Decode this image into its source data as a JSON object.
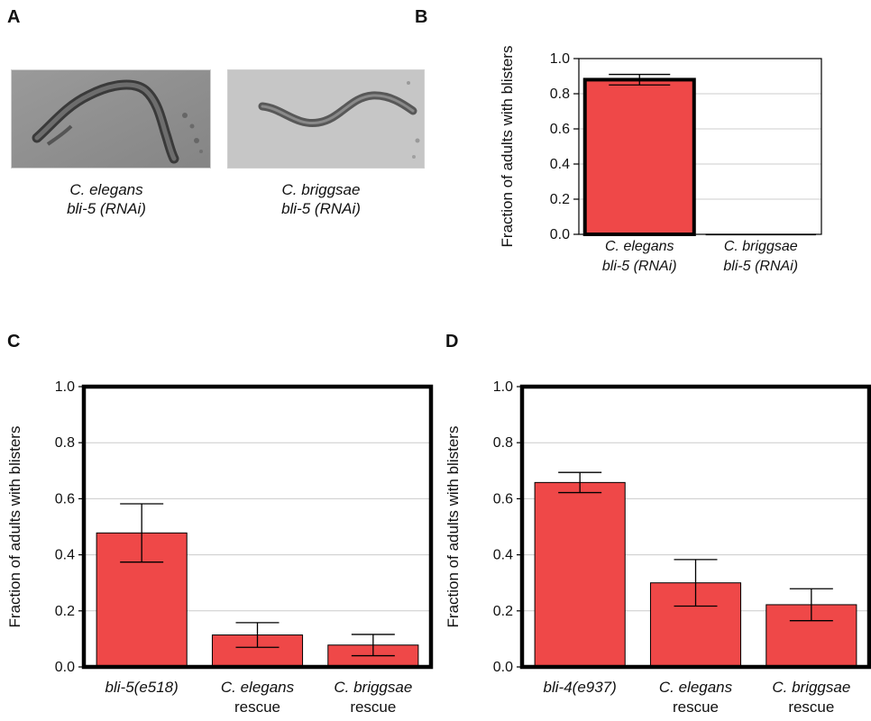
{
  "panels": {
    "A": "A",
    "B": "B",
    "C": "C",
    "D": "D"
  },
  "panel_a": {
    "left_caption": [
      "C. elegans",
      "bli-5 (RNAi)"
    ],
    "right_caption": [
      "C. briggsae",
      "bli-5 (RNAi)"
    ]
  },
  "colors": {
    "bar": "#ef4848",
    "axis": "#000000",
    "grid": "#cccccc",
    "worm_bg_left": "#8e8e8e",
    "worm_bg_right": "#c4c4c4"
  },
  "chart_data": [
    {
      "panel": "B",
      "type": "bar",
      "ylabel": "Fraction of adults with blisters",
      "ylim": [
        0,
        1.0
      ],
      "yticks": [
        "0.0",
        "0.2",
        "0.4",
        "0.6",
        "0.8",
        "1.0"
      ],
      "grid": true,
      "categories": [
        {
          "line1": "C. elegans",
          "line2": "bli-5 (RNAi)",
          "italic2": true
        },
        {
          "line1": "C. briggsae",
          "line2": "bli-5 (RNAi)",
          "italic2": true
        }
      ],
      "values": [
        0.88,
        0.0
      ],
      "errors": [
        0.03,
        0.0
      ]
    },
    {
      "panel": "C",
      "type": "bar",
      "ylabel": "Fraction of adults with blisters",
      "ylim": [
        0,
        1.0
      ],
      "yticks": [
        "0.0",
        "0.2",
        "0.4",
        "0.6",
        "0.8",
        "1.0"
      ],
      "grid": true,
      "categories": [
        {
          "line1": "bli-5(e518)",
          "line2": "",
          "italic2": false
        },
        {
          "line1": "C. elegans",
          "line2": "rescue",
          "italic2": false
        },
        {
          "line1": "C. briggsae",
          "line2": "rescue",
          "italic2": false
        }
      ],
      "values": [
        0.478,
        0.114,
        0.078
      ],
      "errors": [
        0.104,
        0.044,
        0.038
      ]
    },
    {
      "panel": "D",
      "type": "bar",
      "ylabel": "Fraction of adults with blisters",
      "ylim": [
        0,
        1.0
      ],
      "yticks": [
        "0.0",
        "0.2",
        "0.4",
        "0.6",
        "0.8",
        "1.0"
      ],
      "grid": true,
      "categories": [
        {
          "line1": "bli-4(e937)",
          "line2": "",
          "italic2": false
        },
        {
          "line1": "C. elegans",
          "line2": "rescue",
          "italic2": false
        },
        {
          "line1": "C. briggsae",
          "line2": "rescue",
          "italic2": false
        }
      ],
      "values": [
        0.658,
        0.3,
        0.222
      ],
      "errors": [
        0.036,
        0.083,
        0.057
      ]
    }
  ]
}
